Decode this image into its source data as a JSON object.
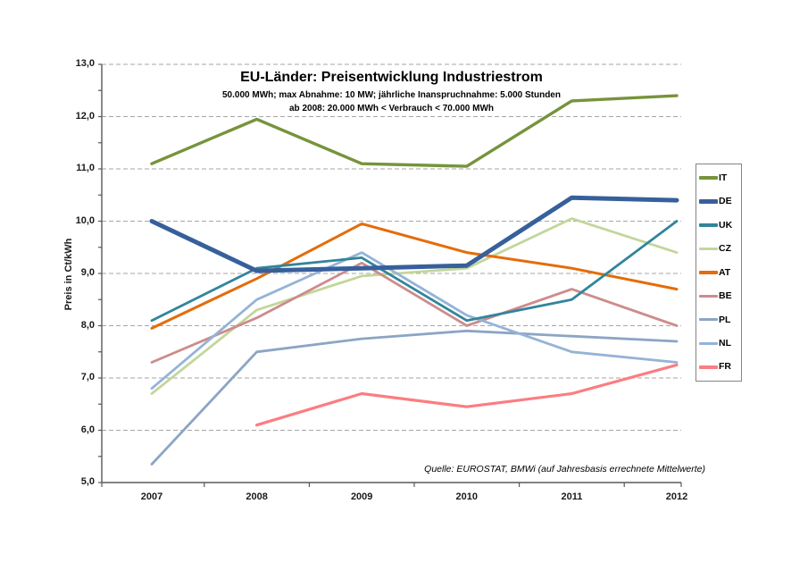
{
  "chart_data": {
    "type": "line",
    "title": "EU-Länder: Preisentwicklung Industriestrom",
    "subtitle1": "50.000 MWh; max Abnahme: 10 MW; jährliche Inanspruchnahme: 5.000 Stunden",
    "subtitle2": "ab 2008: 20.000 MWh < Verbrauch < 70.000 MWh",
    "annotation": "Quelle: EUROSTAT, BMWi (auf Jahresbasis errechnete Mittelwerte)",
    "xlabel": "",
    "ylabel": "Preis in Ct/kWh",
    "ylim": [
      5.0,
      13.0
    ],
    "ytick_step": 1.0,
    "ytick_labels": [
      "5,0",
      "6,0",
      "7,0",
      "8,0",
      "9,0",
      "10,0",
      "11,0",
      "12,0",
      "13,0"
    ],
    "grid": "horizontal dashed gridlines at every 1.0, minor y ticks every 0.5",
    "legend_position": "right",
    "categories": [
      "2007",
      "2008",
      "2009",
      "2010",
      "2011",
      "2012"
    ],
    "series": [
      {
        "name": "IT",
        "color": "#77933C",
        "width": 3.4,
        "values": [
          11.1,
          11.95,
          11.1,
          11.05,
          12.3,
          12.4
        ]
      },
      {
        "name": "DE",
        "color": "#37609B",
        "width": 5.0,
        "values": [
          10.0,
          9.05,
          9.1,
          9.15,
          10.45,
          10.4
        ]
      },
      {
        "name": "UK",
        "color": "#31859C",
        "width": 2.8,
        "values": [
          8.1,
          9.1,
          9.3,
          8.1,
          8.5,
          10.0
        ]
      },
      {
        "name": "CZ",
        "color": "#C3D69B",
        "width": 2.8,
        "values": [
          6.7,
          8.3,
          8.95,
          9.1,
          10.05,
          9.4
        ]
      },
      {
        "name": "AT",
        "color": "#E46C0A",
        "width": 3.0,
        "values": [
          7.95,
          8.9,
          9.95,
          9.4,
          9.1,
          8.7
        ]
      },
      {
        "name": "BE",
        "color": "#CD8B8B",
        "width": 2.8,
        "values": [
          7.3,
          8.15,
          9.2,
          8.0,
          8.7,
          8.0
        ]
      },
      {
        "name": "PL",
        "color": "#8CA5C4",
        "width": 2.8,
        "values": [
          5.35,
          7.5,
          7.75,
          7.9,
          7.8,
          7.7
        ]
      },
      {
        "name": "NL",
        "color": "#95B3D7",
        "width": 2.8,
        "values": [
          6.8,
          8.5,
          9.4,
          8.2,
          7.5,
          7.3
        ]
      },
      {
        "name": "FR",
        "color": "#FB7D81",
        "width": 3.2,
        "values": [
          null,
          6.1,
          6.7,
          6.45,
          6.7,
          7.25
        ]
      }
    ],
    "draw_order": [
      "CZ",
      "BE",
      "PL",
      "NL",
      "AT",
      "UK",
      "FR",
      "IT",
      "DE"
    ],
    "axis_color": "#595959",
    "grid_color": "#a6a6a6"
  }
}
